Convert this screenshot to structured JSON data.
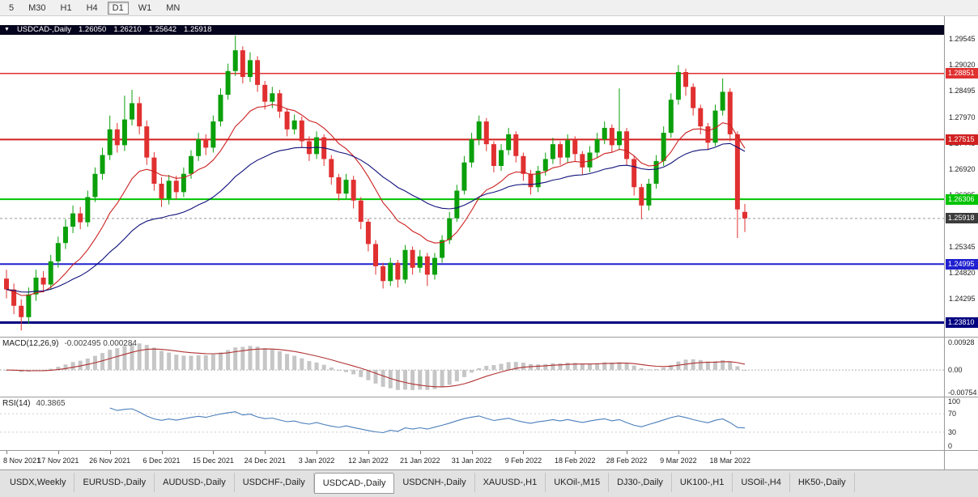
{
  "toolbar": {
    "timeframes": [
      {
        "label": "5",
        "active": false
      },
      {
        "label": "M30",
        "active": false
      },
      {
        "label": "H1",
        "active": false
      },
      {
        "label": "H4",
        "active": false
      },
      {
        "label": "D1",
        "active": true
      },
      {
        "label": "W1",
        "active": false
      },
      {
        "label": "MN",
        "active": false
      }
    ]
  },
  "symbol_bar": {
    "symbol": "USDCAD-,Daily",
    "open": "1.26050",
    "high": "1.26210",
    "low": "1.25642",
    "close": "1.25918"
  },
  "chart_data": {
    "type": "candlestick",
    "symbol": "USDCAD",
    "timeframe": "Daily",
    "scale": {
      "top": 1.3001,
      "bottom": 1.23524
    },
    "price_axis_ticks": [
      "1.29545",
      "1.29020",
      "1.28495",
      "1.27970",
      "1.27445",
      "1.26920",
      "1.26395",
      "1.25870",
      "1.25345",
      "1.24820",
      "1.24295",
      "1.23770"
    ],
    "hlines": [
      {
        "price": 1.28851,
        "label": "1.28851",
        "color": "#e03030",
        "width": 1.5
      },
      {
        "price": 1.27515,
        "label": "1.27515",
        "color": "#d02020",
        "width": 2
      },
      {
        "price": 1.26306,
        "label": "1.26306",
        "color": "#00c400",
        "width": 2
      },
      {
        "price": 1.24995,
        "label": "1.24995",
        "color": "#2020d0",
        "width": 2
      },
      {
        "price": 1.2381,
        "label": "1.23810",
        "color": "#000080",
        "width": 3
      }
    ],
    "current_price": {
      "price": 1.25918,
      "label": "1.25918",
      "badge": "#3c3c3c"
    },
    "moving_averages": [
      {
        "period": 13,
        "color": "#cc2020"
      },
      {
        "period": 34,
        "color": "#10107a"
      }
    ],
    "candle_up": "#0ba00b",
    "candle_down": "#e03030",
    "x_labels": [
      {
        "i": 0,
        "label": "8 Nov 2021"
      },
      {
        "i": 7,
        "label": "17 Nov 2021"
      },
      {
        "i": 14,
        "label": "26 Nov 2021"
      },
      {
        "i": 21,
        "label": "6 Dec 2021"
      },
      {
        "i": 28,
        "label": "15 Dec 2021"
      },
      {
        "i": 35,
        "label": "24 Dec 2021"
      },
      {
        "i": 42,
        "label": "3 Jan 2022"
      },
      {
        "i": 49,
        "label": "12 Jan 2022"
      },
      {
        "i": 56,
        "label": "21 Jan 2022"
      },
      {
        "i": 63,
        "label": "31 Jan 2022"
      },
      {
        "i": 70,
        "label": "9 Feb 2022"
      },
      {
        "i": 77,
        "label": "18 Feb 2022"
      },
      {
        "i": 84,
        "label": "28 Feb 2022"
      },
      {
        "i": 91,
        "label": "9 Mar 2022"
      },
      {
        "i": 98,
        "label": "18 Mar 2022"
      }
    ],
    "ohlc": [
      [
        1.247,
        1.2488,
        1.243,
        1.2448
      ],
      [
        1.2448,
        1.246,
        1.2398,
        1.2415
      ],
      [
        1.2415,
        1.2428,
        1.2365,
        1.2392
      ],
      [
        1.2392,
        1.2452,
        1.2378,
        1.2438
      ],
      [
        1.2438,
        1.2488,
        1.2425,
        1.2472
      ],
      [
        1.2472,
        1.2485,
        1.2442,
        1.2458
      ],
      [
        1.2458,
        1.2518,
        1.2448,
        1.2505
      ],
      [
        1.2505,
        1.2555,
        1.2492,
        1.2542
      ],
      [
        1.2542,
        1.259,
        1.253,
        1.2575
      ],
      [
        1.2575,
        1.2618,
        1.2562,
        1.2602
      ],
      [
        1.2602,
        1.2615,
        1.257,
        1.2584
      ],
      [
        1.2584,
        1.2648,
        1.2575,
        1.2635
      ],
      [
        1.2635,
        1.2695,
        1.2625,
        1.2682
      ],
      [
        1.2682,
        1.2735,
        1.267,
        1.272
      ],
      [
        1.272,
        1.28,
        1.271,
        1.2772
      ],
      [
        1.2772,
        1.2785,
        1.2725,
        1.274
      ],
      [
        1.274,
        1.284,
        1.2728,
        1.2792
      ],
      [
        1.2792,
        1.2852,
        1.278,
        1.2825
      ],
      [
        1.2825,
        1.2838,
        1.2762,
        1.2778
      ],
      [
        1.2778,
        1.279,
        1.27,
        1.2715
      ],
      [
        1.2715,
        1.2726,
        1.2648,
        1.2662
      ],
      [
        1.2662,
        1.2675,
        1.2615,
        1.2632
      ],
      [
        1.2632,
        1.268,
        1.262,
        1.2668
      ],
      [
        1.2668,
        1.2678,
        1.263,
        1.2645
      ],
      [
        1.2645,
        1.2695,
        1.2635,
        1.2682
      ],
      [
        1.2682,
        1.273,
        1.2672,
        1.2718
      ],
      [
        1.2718,
        1.2765,
        1.2708,
        1.2752
      ],
      [
        1.2752,
        1.2762,
        1.272,
        1.2735
      ],
      [
        1.2735,
        1.28,
        1.2725,
        1.2788
      ],
      [
        1.2788,
        1.2855,
        1.2778,
        1.2842
      ],
      [
        1.2842,
        1.2905,
        1.2832,
        1.289
      ],
      [
        1.289,
        1.2962,
        1.288,
        1.2932
      ],
      [
        1.2932,
        1.294,
        1.2865,
        1.2878
      ],
      [
        1.2878,
        1.2928,
        1.2868,
        1.2912
      ],
      [
        1.2912,
        1.292,
        1.2848,
        1.2862
      ],
      [
        1.2862,
        1.287,
        1.2812,
        1.2828
      ],
      [
        1.2828,
        1.2858,
        1.2815,
        1.2845
      ],
      [
        1.2845,
        1.2852,
        1.2795,
        1.2808
      ],
      [
        1.2808,
        1.2815,
        1.2758,
        1.2772
      ],
      [
        1.2772,
        1.2802,
        1.2762,
        1.279
      ],
      [
        1.279,
        1.2798,
        1.2735,
        1.2748
      ],
      [
        1.2748,
        1.2758,
        1.2708,
        1.2722
      ],
      [
        1.2722,
        1.2768,
        1.2712,
        1.2756
      ],
      [
        1.2756,
        1.2762,
        1.2698,
        1.2712
      ],
      [
        1.2712,
        1.272,
        1.266,
        1.2675
      ],
      [
        1.2675,
        1.2682,
        1.2628,
        1.2642
      ],
      [
        1.2642,
        1.2682,
        1.2632,
        1.267
      ],
      [
        1.267,
        1.2678,
        1.2612,
        1.2628
      ],
      [
        1.2628,
        1.2635,
        1.257,
        1.2585
      ],
      [
        1.2585,
        1.2592,
        1.2525,
        1.254
      ],
      [
        1.254,
        1.2548,
        1.2478,
        1.2495
      ],
      [
        1.2495,
        1.2502,
        1.245,
        1.2465
      ],
      [
        1.2465,
        1.2512,
        1.2455,
        1.2502
      ],
      [
        1.2502,
        1.2508,
        1.2452,
        1.2468
      ],
      [
        1.2468,
        1.2538,
        1.246,
        1.2528
      ],
      [
        1.2528,
        1.2535,
        1.2478,
        1.2492
      ],
      [
        1.2492,
        1.2528,
        1.2482,
        1.2515
      ],
      [
        1.2515,
        1.2522,
        1.2455,
        1.2478
      ],
      [
        1.2478,
        1.2522,
        1.2468,
        1.2512
      ],
      [
        1.2512,
        1.2558,
        1.2502,
        1.2548
      ],
      [
        1.2548,
        1.2605,
        1.254,
        1.2592
      ],
      [
        1.2592,
        1.266,
        1.2585,
        1.2648
      ],
      [
        1.2648,
        1.2718,
        1.264,
        1.2705
      ],
      [
        1.2705,
        1.2765,
        1.2695,
        1.2752
      ],
      [
        1.2752,
        1.28,
        1.274,
        1.2788
      ],
      [
        1.2788,
        1.2795,
        1.2728,
        1.2742
      ],
      [
        1.2742,
        1.2748,
        1.2685,
        1.2698
      ],
      [
        1.2698,
        1.2742,
        1.2688,
        1.273
      ],
      [
        1.273,
        1.2775,
        1.272,
        1.2762
      ],
      [
        1.2762,
        1.2768,
        1.2705,
        1.2718
      ],
      [
        1.2718,
        1.2725,
        1.2668,
        1.2682
      ],
      [
        1.2682,
        1.269,
        1.264,
        1.2655
      ],
      [
        1.2655,
        1.2698,
        1.2645,
        1.2688
      ],
      [
        1.2688,
        1.2725,
        1.2678,
        1.2712
      ],
      [
        1.2712,
        1.2755,
        1.2702,
        1.2742
      ],
      [
        1.2742,
        1.2748,
        1.27,
        1.2715
      ],
      [
        1.2715,
        1.2762,
        1.2705,
        1.275
      ],
      [
        1.275,
        1.2758,
        1.2708,
        1.2722
      ],
      [
        1.2722,
        1.2728,
        1.268,
        1.2695
      ],
      [
        1.2695,
        1.2738,
        1.2685,
        1.2725
      ],
      [
        1.2725,
        1.2765,
        1.2715,
        1.2752
      ],
      [
        1.2752,
        1.2788,
        1.2742,
        1.2775
      ],
      [
        1.2775,
        1.2782,
        1.2725,
        1.274
      ],
      [
        1.274,
        1.2855,
        1.273,
        1.2768
      ],
      [
        1.2768,
        1.2775,
        1.2698,
        1.2712
      ],
      [
        1.2712,
        1.2718,
        1.2638,
        1.2655
      ],
      [
        1.2655,
        1.2662,
        1.259,
        1.2618
      ],
      [
        1.2618,
        1.2672,
        1.2608,
        1.2662
      ],
      [
        1.2662,
        1.272,
        1.2652,
        1.2708
      ],
      [
        1.2708,
        1.2778,
        1.2698,
        1.2765
      ],
      [
        1.2765,
        1.2845,
        1.2755,
        1.2832
      ],
      [
        1.2832,
        1.2902,
        1.2822,
        1.2888
      ],
      [
        1.2888,
        1.2895,
        1.284,
        1.2858
      ],
      [
        1.2858,
        1.2865,
        1.28,
        1.2815
      ],
      [
        1.2815,
        1.2822,
        1.2762,
        1.2778
      ],
      [
        1.2778,
        1.2785,
        1.273,
        1.2745
      ],
      [
        1.2745,
        1.2822,
        1.2738,
        1.281
      ],
      [
        1.281,
        1.2875,
        1.28,
        1.2848
      ],
      [
        1.2848,
        1.2855,
        1.2748,
        1.2762
      ],
      [
        1.2762,
        1.2768,
        1.2552,
        1.261
      ],
      [
        1.2605,
        1.2621,
        1.25642,
        1.25918
      ]
    ]
  },
  "macd": {
    "name": "MACD(12,26,9)",
    "values": "-0.002495 0.000284",
    "fast": 12,
    "slow": 26,
    "signal": 9,
    "axis": [
      "0.00928",
      "0.00",
      "-0.00754"
    ],
    "hist_color": "#c6c6c6",
    "signal_color": "#b03030"
  },
  "rsi": {
    "name": "RSI(14)",
    "value": "40.3865",
    "period": 14,
    "levels": [
      70,
      30
    ],
    "axis": [
      "100",
      "70",
      "30",
      "0"
    ],
    "line_color": "#4a7ebb"
  },
  "tabs": {
    "items": [
      {
        "label": "USDX,Weekly",
        "active": false
      },
      {
        "label": "EURUSD-,Daily",
        "active": false
      },
      {
        "label": "AUDUSD-,Daily",
        "active": false
      },
      {
        "label": "USDCHF-,Daily",
        "active": false
      },
      {
        "label": "USDCAD-,Daily",
        "active": true
      },
      {
        "label": "USDCNH-,Daily",
        "active": false
      },
      {
        "label": "XAUUSD-,H1",
        "active": false
      },
      {
        "label": "UKOil-,M15",
        "active": false
      },
      {
        "label": "DJ30-,Daily",
        "active": false
      },
      {
        "label": "UK100-,H1",
        "active": false
      },
      {
        "label": "USOil-,H4",
        "active": false
      },
      {
        "label": "HK50-,Daily",
        "active": false
      }
    ]
  }
}
